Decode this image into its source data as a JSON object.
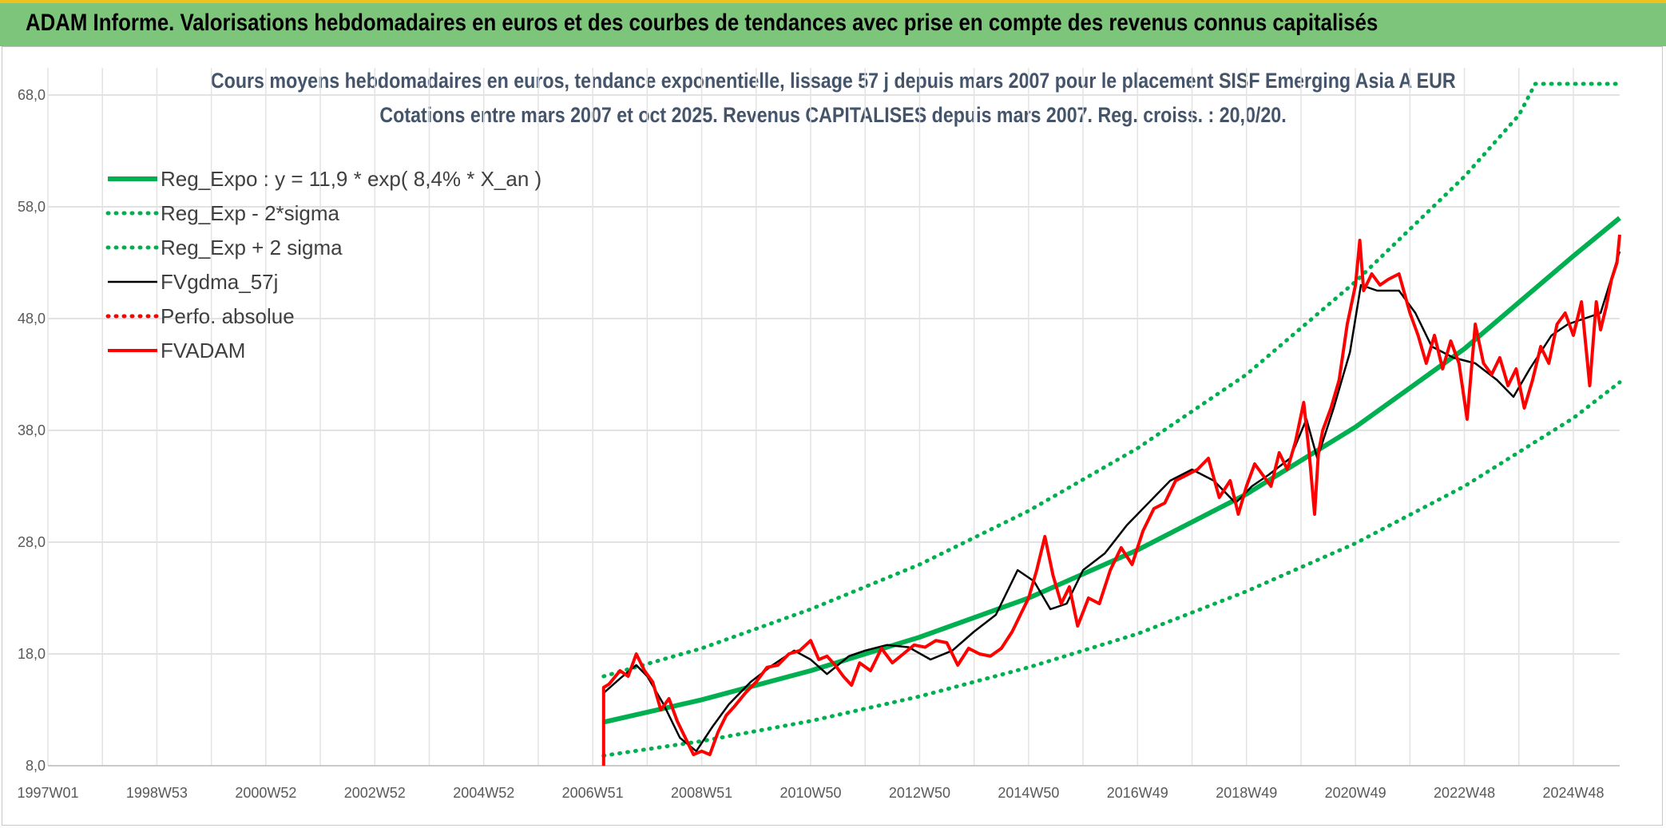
{
  "banner": {
    "title": "ADAM Informe. Valorisations hebdomadaires en euros et des courbes de tendances avec prise en compte des revenus connus capitalisés"
  },
  "colors": {
    "banner_bg": "#7dc57a",
    "trend": "#00b050",
    "smooth": "#000000",
    "fvadam": "#ff0000",
    "perfo": "#ff0000"
  },
  "chart_data": {
    "type": "line",
    "title": "Cours moyens hebdomadaires en euros, tendance exponentielle, lissage 57 j depuis mars 2007 pour le placement SISF Emerging Asia A EUR",
    "subtitle": "Cotations entre mars 2007 et oct 2025. Revenus CAPITALISES depuis mars 2007. Reg. croiss. : 20,0/20.",
    "xlim": [
      1997.0,
      2025.85
    ],
    "ylim": [
      8.0,
      69.0
    ],
    "x_ticks": [
      {
        "label": "1997W01",
        "x": 1997.0
      },
      {
        "label": "1998W53",
        "x": 1999.0
      },
      {
        "label": "2000W52",
        "x": 2001.0
      },
      {
        "label": "2002W52",
        "x": 2003.0
      },
      {
        "label": "2004W52",
        "x": 2005.0
      },
      {
        "label": "2006W51",
        "x": 2007.0
      },
      {
        "label": "2008W51",
        "x": 2009.0
      },
      {
        "label": "2010W50",
        "x": 2011.0
      },
      {
        "label": "2012W50",
        "x": 2013.0
      },
      {
        "label": "2014W50",
        "x": 2015.0
      },
      {
        "label": "2016W49",
        "x": 2017.0
      },
      {
        "label": "2018W49",
        "x": 2019.0
      },
      {
        "label": "2020W49",
        "x": 2021.0
      },
      {
        "label": "2022W48",
        "x": 2023.0
      },
      {
        "label": "2024W48",
        "x": 2025.0
      }
    ],
    "y_ticks": [
      {
        "label": "8,0",
        "y": 8
      },
      {
        "label": "18,0",
        "y": 18
      },
      {
        "label": "28,0",
        "y": 28
      },
      {
        "label": "38,0",
        "y": 38
      },
      {
        "label": "48,0",
        "y": 48
      },
      {
        "label": "58,0",
        "y": 58
      },
      {
        "label": "68,0",
        "y": 68
      }
    ],
    "grid": true,
    "legend_position": "top-left",
    "series": [
      {
        "name": "Reg_Expo : y = 11,9 * exp( 8,4% *  X_an )",
        "style": "thick-solid",
        "color": "#00b050",
        "x": [
          2007.2,
          2009,
          2011,
          2013,
          2015,
          2017,
          2019,
          2021,
          2023,
          2025,
          2025.85
        ],
        "y": [
          11.9,
          13.9,
          16.5,
          19.5,
          23.0,
          27.3,
          32.3,
          38.3,
          45.3,
          53.6,
          57.0
        ]
      },
      {
        "name": "Reg_Exp - 2*sigma",
        "style": "dotted",
        "color": "#00b050",
        "x": [
          2007.2,
          2009,
          2011,
          2013,
          2015,
          2017,
          2019,
          2021,
          2023,
          2025,
          2025.85
        ],
        "y": [
          8.9,
          10.2,
          12.0,
          14.2,
          16.8,
          19.8,
          23.6,
          27.9,
          33.0,
          39.1,
          42.3
        ]
      },
      {
        "name": "Reg_Exp + 2 sigma",
        "style": "dotted",
        "color": "#00b050",
        "x": [
          2007.2,
          2009,
          2011,
          2013,
          2015,
          2017,
          2019,
          2021,
          2023,
          2024,
          2024.3,
          2025.85
        ],
        "y": [
          16.0,
          18.5,
          22.0,
          26.0,
          30.8,
          36.4,
          43.0,
          51.3,
          60.7,
          66.2,
          69.0,
          69.0
        ]
      },
      {
        "name": "FVgdma_57j",
        "style": "thin-solid",
        "color": "#000000",
        "x": [
          2007.2,
          2007.5,
          2007.8,
          2008.0,
          2008.3,
          2008.6,
          2008.9,
          2009.2,
          2009.5,
          2009.9,
          2010.3,
          2010.7,
          2011.0,
          2011.3,
          2011.7,
          2012.0,
          2012.4,
          2012.8,
          2013.2,
          2013.6,
          2014.0,
          2014.4,
          2014.8,
          2015.1,
          2015.4,
          2015.7,
          2016.0,
          2016.4,
          2016.8,
          2017.2,
          2017.6,
          2018.0,
          2018.4,
          2018.8,
          2019.1,
          2019.4,
          2019.8,
          2020.1,
          2020.3,
          2020.6,
          2020.9,
          2021.1,
          2021.4,
          2021.8,
          2022.1,
          2022.4,
          2022.8,
          2023.2,
          2023.6,
          2023.9,
          2024.2,
          2024.6,
          2024.9,
          2025.2,
          2025.5,
          2025.85
        ],
        "y": [
          14.5,
          15.8,
          17.0,
          16.0,
          13.5,
          10.5,
          9.3,
          11.5,
          13.5,
          15.5,
          17.0,
          18.3,
          17.5,
          16.2,
          17.8,
          18.3,
          18.8,
          18.6,
          17.5,
          18.3,
          20.0,
          21.5,
          25.5,
          24.5,
          22.0,
          22.5,
          25.5,
          27.0,
          29.5,
          31.5,
          33.5,
          34.5,
          33.5,
          31.5,
          33.0,
          34.0,
          35.5,
          39.0,
          35.5,
          40.0,
          45.0,
          51.0,
          50.5,
          50.5,
          48.5,
          45.5,
          44.5,
          44.0,
          42.5,
          41.0,
          43.5,
          46.5,
          47.5,
          48.0,
          48.5,
          54.0
        ]
      },
      {
        "name": "Perfo. absolue",
        "style": "dotted",
        "color": "#ff0000",
        "x": [],
        "y": []
      },
      {
        "name": "FVADAM",
        "style": "thick-solid",
        "color": "#ff0000",
        "x": [
          2007.2,
          2007.2,
          2007.3,
          2007.5,
          2007.65,
          2007.8,
          2007.95,
          2008.1,
          2008.25,
          2008.4,
          2008.55,
          2008.7,
          2008.85,
          2009.0,
          2009.15,
          2009.3,
          2009.45,
          2009.6,
          2009.8,
          2010.0,
          2010.2,
          2010.4,
          2010.6,
          2010.8,
          2011.0,
          2011.15,
          2011.3,
          2011.45,
          2011.6,
          2011.75,
          2011.9,
          2012.1,
          2012.3,
          2012.5,
          2012.7,
          2012.9,
          2013.1,
          2013.3,
          2013.5,
          2013.7,
          2013.9,
          2014.1,
          2014.3,
          2014.5,
          2014.7,
          2014.85,
          2015.0,
          2015.15,
          2015.3,
          2015.45,
          2015.6,
          2015.75,
          2015.9,
          2016.1,
          2016.3,
          2016.5,
          2016.7,
          2016.9,
          2017.1,
          2017.3,
          2017.5,
          2017.7,
          2017.9,
          2018.1,
          2018.3,
          2018.5,
          2018.7,
          2018.85,
          2019.0,
          2019.15,
          2019.3,
          2019.45,
          2019.6,
          2019.75,
          2019.9,
          2020.05,
          2020.15,
          2020.25,
          2020.32,
          2020.4,
          2020.55,
          2020.7,
          2020.85,
          2021.0,
          2021.08,
          2021.15,
          2021.3,
          2021.45,
          2021.6,
          2021.8,
          2022.0,
          2022.15,
          2022.3,
          2022.45,
          2022.6,
          2022.75,
          2022.9,
          2023.05,
          2023.2,
          2023.35,
          2023.5,
          2023.65,
          2023.8,
          2023.95,
          2024.1,
          2024.25,
          2024.4,
          2024.55,
          2024.7,
          2024.85,
          2025.0,
          2025.15,
          2025.3,
          2025.42,
          2025.5,
          2025.6,
          2025.7,
          2025.8,
          2025.85
        ],
        "y": [
          8.0,
          15.0,
          15.3,
          16.5,
          16.0,
          18.0,
          16.5,
          15.5,
          13.0,
          14.0,
          12.0,
          10.5,
          9.0,
          9.3,
          9.0,
          11.0,
          12.5,
          13.3,
          14.5,
          15.5,
          16.8,
          17.0,
          18.0,
          18.3,
          19.2,
          17.5,
          17.8,
          17.0,
          16.0,
          15.2,
          17.2,
          16.5,
          18.5,
          17.2,
          18.0,
          18.8,
          18.6,
          19.2,
          19.0,
          17.0,
          18.5,
          18.0,
          17.8,
          18.5,
          20.0,
          21.5,
          23.0,
          25.5,
          28.5,
          25.0,
          22.5,
          24.0,
          20.5,
          23.0,
          22.5,
          25.5,
          27.5,
          26.0,
          29.0,
          31.0,
          31.5,
          33.5,
          34.0,
          34.5,
          35.5,
          32.0,
          33.5,
          30.5,
          33.0,
          35.0,
          34.0,
          33.0,
          36.0,
          34.5,
          37.0,
          40.5,
          36.0,
          30.5,
          36.0,
          38.0,
          40.0,
          42.5,
          47.5,
          51.0,
          55.0,
          50.5,
          52.0,
          51.0,
          51.5,
          52.0,
          48.5,
          46.5,
          44.0,
          46.5,
          43.5,
          46.0,
          44.0,
          39.0,
          47.5,
          44.0,
          43.0,
          44.5,
          42.0,
          43.5,
          40.0,
          42.5,
          45.5,
          44.0,
          47.5,
          48.5,
          46.5,
          49.5,
          42.0,
          49.5,
          47.0,
          49.0,
          51.5,
          53.0,
          55.5
        ]
      }
    ]
  }
}
